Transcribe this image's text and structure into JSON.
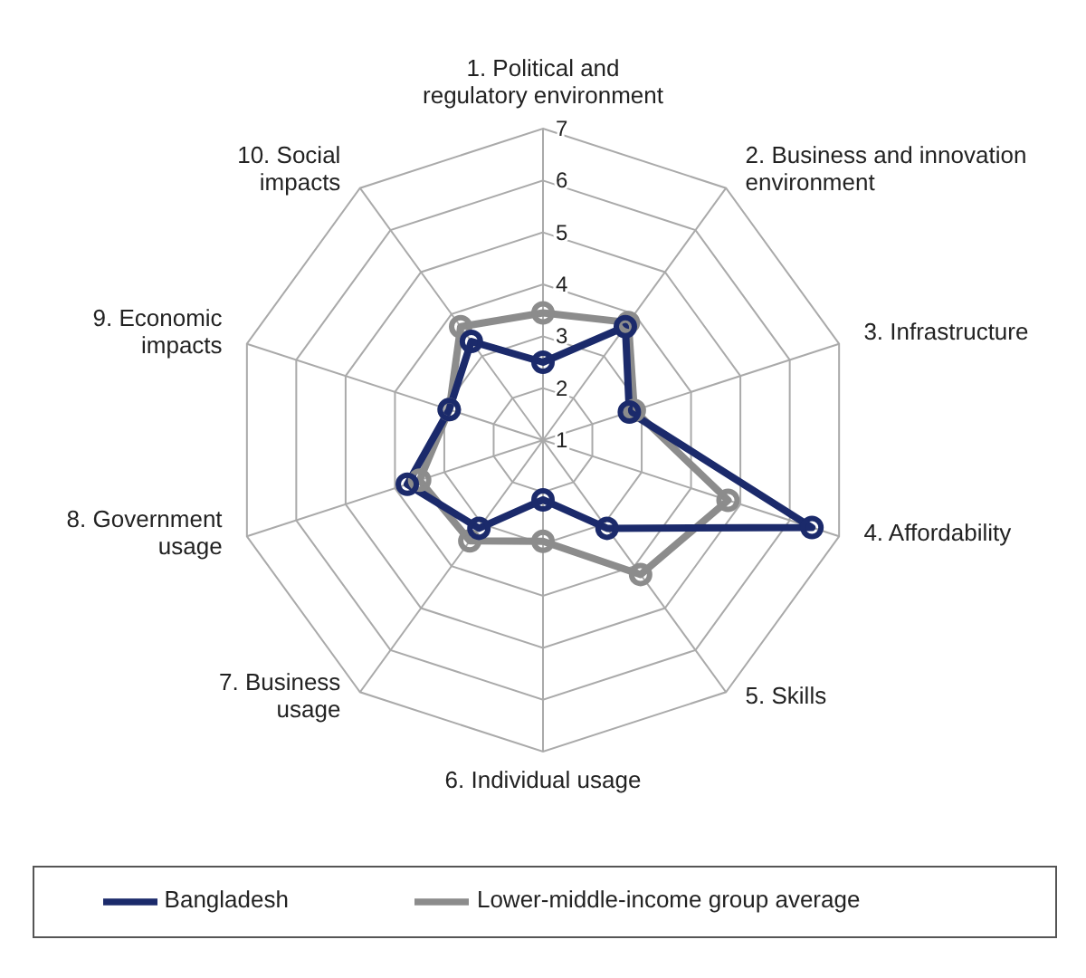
{
  "chart_data": {
    "type": "radar",
    "categories": [
      "1. Political and regulatory environment",
      "2. Business and innovation environment",
      "3. Infrastructure",
      "4. Affordability",
      "5. Skills",
      "6. Individual usage",
      "7. Business usage",
      "8. Government usage",
      "9. Economic impacts",
      "10. Social impacts"
    ],
    "series": [
      {
        "name": "Bangladesh",
        "color": "#1b2a6b",
        "values": [
          2.5,
          3.7,
          2.75,
          6.45,
          3.1,
          2.15,
          3.1,
          3.75,
          2.9,
          3.35
        ]
      },
      {
        "name": "Lower-middle-income group average",
        "color": "#8c8c8c",
        "values": [
          3.45,
          3.8,
          2.85,
          4.75,
          4.2,
          2.95,
          3.4,
          3.5,
          2.9,
          3.7
        ]
      }
    ],
    "ylim": [
      1,
      7
    ],
    "yticks": [
      1,
      2,
      3,
      4,
      5,
      6,
      7
    ],
    "grid": true,
    "legend": "bottom",
    "marker": "circle"
  }
}
